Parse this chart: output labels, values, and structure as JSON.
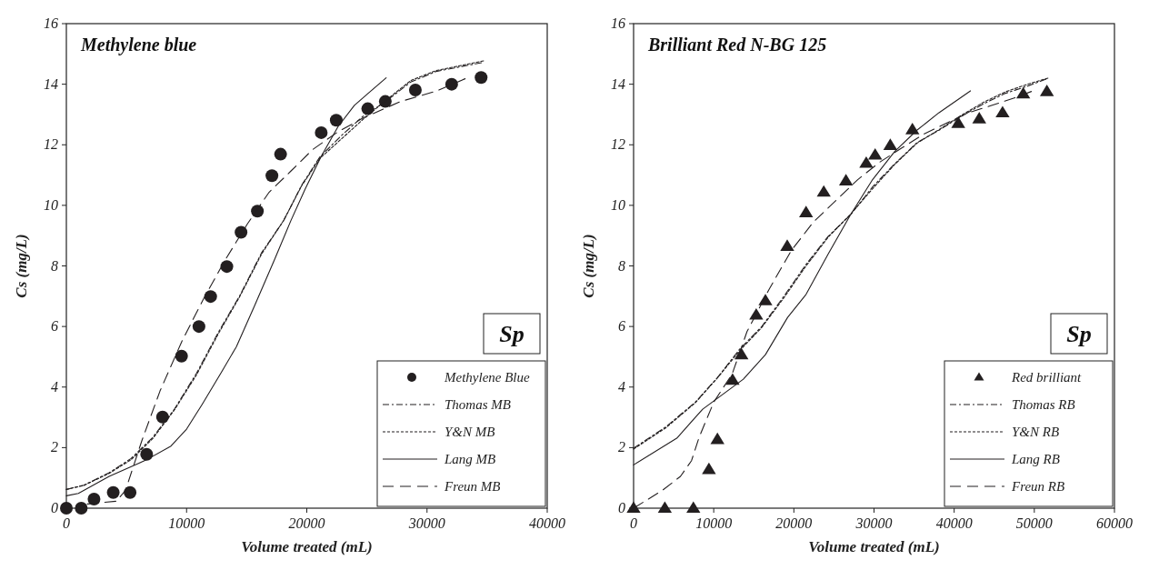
{
  "chart_data": [
    {
      "type": "line",
      "title": "Methylene blue",
      "xlabel": "Volume treated (mL)",
      "ylabel": "Cs (mg/L)",
      "xlim": [
        0,
        40000
      ],
      "ylim": [
        0,
        16
      ],
      "xticks": [
        0,
        10000,
        20000,
        30000,
        40000
      ],
      "yticks": [
        0,
        2,
        4,
        6,
        8,
        10,
        12,
        14,
        16
      ],
      "grid": false,
      "legend": "bottom right",
      "annotations": [
        "Sp"
      ],
      "series": [
        {
          "name": "Methylene Blue",
          "type": "scatter",
          "marker": "circle",
          "color": "#231f20",
          "x": [
            0,
            1240,
            2300,
            3900,
            5300,
            6680,
            8000,
            9580,
            11030,
            12000,
            13350,
            14530,
            15890,
            17100,
            17820,
            21200,
            22450,
            25070,
            26530,
            29030,
            32050,
            34500
          ],
          "values": [
            0,
            0,
            0.3,
            0.52,
            0.52,
            1.78,
            3.01,
            5.02,
            6.0,
            6.99,
            7.98,
            9.11,
            9.81,
            10.98,
            11.69,
            12.4,
            12.81,
            13.19,
            13.43,
            13.81,
            14.0,
            14.22
          ]
        },
        {
          "name": "Thomas MB",
          "line_style": "dashdot",
          "color": "#231f20",
          "x": [
            0,
            1450,
            3560,
            5380,
            7190,
            9000,
            10820,
            12630,
            14440,
            16250,
            18070,
            19580,
            21090,
            22900,
            24710,
            26530,
            28640,
            30750,
            34530
          ],
          "values": [
            0.62,
            0.76,
            1.17,
            1.64,
            2.34,
            3.28,
            4.45,
            5.8,
            7.03,
            8.44,
            9.49,
            10.67,
            11.6,
            12.31,
            12.95,
            13.42,
            14.07,
            14.42,
            14.71
          ]
        },
        {
          "name": "Y&N MB",
          "line_style": "dotted",
          "color": "#231f20",
          "x": [
            0,
            1450,
            3560,
            5380,
            7190,
            9000,
            10820,
            12630,
            14440,
            16250,
            18070,
            19580,
            21090,
            22900,
            24710,
            26530,
            28640,
            30750,
            34700
          ],
          "values": [
            0.62,
            0.75,
            1.15,
            1.6,
            2.3,
            3.25,
            4.4,
            5.75,
            7.0,
            8.4,
            9.5,
            10.65,
            11.55,
            12.2,
            12.85,
            13.45,
            14.12,
            14.45,
            14.77
          ]
        },
        {
          "name": "Lang MB",
          "line_style": "solid",
          "color": "#231f20",
          "x": [
            0,
            1000,
            3560,
            6580,
            8700,
            10000,
            11300,
            12930,
            14140,
            15650,
            17310,
            18670,
            19880,
            21180,
            22600,
            23960,
            25000,
            26600
          ],
          "values": [
            0.41,
            0.49,
            1.05,
            1.58,
            2.05,
            2.61,
            3.43,
            4.51,
            5.33,
            6.68,
            8.2,
            9.49,
            10.55,
            11.6,
            12.6,
            13.3,
            13.66,
            14.21
          ]
        },
        {
          "name": "Freun MB",
          "line_style": "dashed",
          "color": "#231f20",
          "x": [
            1750,
            4170,
            4920,
            6280,
            7790,
            9610,
            11420,
            13230,
            15050,
            16860,
            18670,
            20480,
            22600,
            24710,
            27740,
            30750,
            33170
          ],
          "values": [
            0.14,
            0.23,
            0.59,
            2.23,
            3.87,
            5.51,
            6.92,
            8.21,
            9.38,
            10.43,
            11.13,
            11.84,
            12.43,
            12.89,
            13.42,
            13.77,
            14.18
          ]
        }
      ]
    },
    {
      "type": "line",
      "title": "Brilliant Red N-BG 125",
      "xlabel": "Volume treated (mL)",
      "ylabel": "Cs (mg/L)",
      "xlim": [
        0,
        60000
      ],
      "ylim": [
        0,
        16
      ],
      "xticks": [
        0,
        10000,
        20000,
        30000,
        40000,
        50000,
        60000
      ],
      "yticks": [
        0,
        2,
        4,
        6,
        8,
        10,
        12,
        14,
        16
      ],
      "grid": false,
      "legend": "bottom right",
      "annotations": [
        "Sp"
      ],
      "series": [
        {
          "name": "Red brilliant",
          "type": "scatter",
          "marker": "triangle",
          "color": "#231f20",
          "x": [
            0,
            3900,
            7460,
            9400,
            10460,
            12350,
            13460,
            15300,
            16450,
            19170,
            21520,
            23730,
            26500,
            29030,
            30140,
            32030,
            34790,
            40510,
            43130,
            46040,
            48620,
            51570
          ],
          "values": [
            0,
            0,
            0,
            1.28,
            2.27,
            4.23,
            5.07,
            6.38,
            6.85,
            8.65,
            9.76,
            10.44,
            10.81,
            11.39,
            11.66,
            11.98,
            12.5,
            12.71,
            12.86,
            13.06,
            13.68,
            13.76
          ]
        },
        {
          "name": "Thomas RB",
          "line_style": "dashdot",
          "color": "#231f20",
          "x": [
            0,
            4000,
            7700,
            10460,
            13230,
            16000,
            18760,
            21520,
            24290,
            27050,
            29820,
            32580,
            35350,
            38110,
            40880,
            43640,
            46410,
            49170,
            51470
          ],
          "values": [
            1.98,
            2.68,
            3.5,
            4.31,
            5.25,
            6.0,
            7.0,
            8.05,
            8.98,
            9.68,
            10.61,
            11.37,
            12.07,
            12.48,
            12.94,
            13.35,
            13.7,
            13.94,
            14.17
          ]
        },
        {
          "name": "Y&N RB",
          "line_style": "dotted",
          "color": "#231f20",
          "x": [
            0,
            4000,
            7700,
            10460,
            13230,
            16000,
            18760,
            21520,
            24290,
            27050,
            29820,
            32580,
            35350,
            38110,
            40880,
            43640,
            46410,
            49170,
            51700
          ],
          "values": [
            1.95,
            2.65,
            3.48,
            4.3,
            5.2,
            5.97,
            6.95,
            8.0,
            8.95,
            9.7,
            10.55,
            11.35,
            12.05,
            12.5,
            12.97,
            13.4,
            13.75,
            14.0,
            14.2
          ]
        },
        {
          "name": "Lang RB",
          "line_style": "solid",
          "color": "#231f20",
          "x": [
            0,
            5390,
            8620,
            13690,
            16450,
            19220,
            21520,
            24290,
            27050,
            29820,
            32580,
            35350,
            38110,
            42030
          ],
          "values": [
            1.43,
            2.31,
            3.27,
            4.26,
            5.07,
            6.3,
            7.06,
            8.4,
            9.68,
            10.85,
            11.78,
            12.48,
            13.06,
            13.78
          ]
        },
        {
          "name": "Freun RB",
          "line_style": "dashed",
          "color": "#231f20",
          "x": [
            0,
            3550,
            5850,
            7230,
            8160,
            10000,
            12300,
            14150,
            16910,
            19680,
            22440,
            25210,
            27970,
            30740,
            33500,
            36270,
            39030,
            41800,
            44560,
            47330,
            49630
          ],
          "values": [
            0,
            0.58,
            1.05,
            1.57,
            2.33,
            3.5,
            4.43,
            5.83,
            7.23,
            8.51,
            9.45,
            10.15,
            10.85,
            11.43,
            11.9,
            12.36,
            12.71,
            13.06,
            13.29,
            13.53,
            13.76
          ]
        }
      ]
    }
  ]
}
